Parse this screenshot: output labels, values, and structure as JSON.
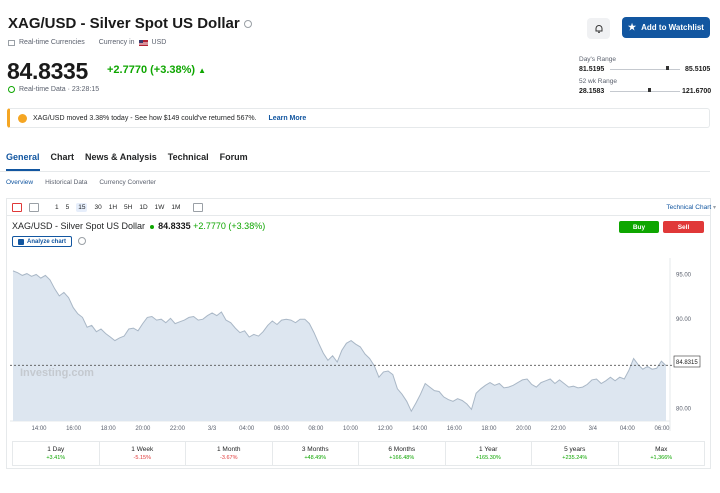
{
  "header": {
    "title": "XAG/USD - Silver Spot US Dollar",
    "realtime_currencies": "Real-time Currencies",
    "currency_in": "Currency in",
    "currency": "USD",
    "add_watchlist": "Add to Watchlist"
  },
  "quote": {
    "price": "84.8335",
    "change": "+2.7770",
    "change_pct": "(+3.38%)",
    "realtime_data": "Real-time Data · 23:28:15"
  },
  "ranges": {
    "day_label": "Day's Range",
    "day_low": "81.5195",
    "day_high": "85.5105",
    "week52_label": "52 wk Range",
    "week52_low": "28.1583",
    "week52_high": "121.6700"
  },
  "banner": {
    "text": "XAG/USD moved 3.38% today - See how $149 could've returned 567%.",
    "link": "Learn More"
  },
  "tabs": [
    "General",
    "Chart",
    "News & Analysis",
    "Technical",
    "Forum"
  ],
  "subtabs": [
    "Overview",
    "Historical Data",
    "Currency Converter"
  ],
  "toolbar": {
    "intervals": [
      "1",
      "5",
      "15",
      "30",
      "1H",
      "5H",
      "1D",
      "1W",
      "1M"
    ],
    "active_interval": "15",
    "technical_chart": "Technical Chart"
  },
  "chart_header": {
    "name": "XAG/USD - Silver Spot US Dollar",
    "price": "84.8335",
    "change": "+2.7770 (+3.38%)",
    "analyze": "Analyze chart",
    "buy": "Buy",
    "sell": "Sell",
    "watermark": "Investing.com",
    "last_label": "84.8315"
  },
  "chart_data": {
    "type": "area",
    "x_tick_labels": [
      "14:00",
      "16:00",
      "18:00",
      "20:00",
      "22:00",
      "3/3",
      "04:00",
      "06:00",
      "08:00",
      "10:00",
      "12:00",
      "14:00",
      "16:00",
      "18:00",
      "20:00",
      "22:00",
      "3/4",
      "04:00",
      "06:00"
    ],
    "y_tick_labels": [
      "95.00",
      "90.00",
      "85.00",
      "80.00"
    ],
    "ylim": [
      78.6,
      96.4
    ],
    "y_ticks": [
      95,
      90,
      85,
      80
    ],
    "last_value": 84.8315,
    "values": [
      95.4,
      95.2,
      94.9,
      95.1,
      94.8,
      95.0,
      94.6,
      94.9,
      94.4,
      93.4,
      92.6,
      93.0,
      92.4,
      91.3,
      90.6,
      90.2,
      89.1,
      89.3,
      88.6,
      88.9,
      88.4,
      88.0,
      87.6,
      87.9,
      88.1,
      88.9,
      89.0,
      88.7,
      89.5,
      90.2,
      90.3,
      89.9,
      90.0,
      89.6,
      90.1,
      89.5,
      89.7,
      89.9,
      90.2,
      90.3,
      89.9,
      90.0,
      90.4,
      90.7,
      90.4,
      90.8,
      89.9,
      89.6,
      89.0,
      88.5,
      88.7,
      88.0,
      88.3,
      88.1,
      88.6,
      89.3,
      89.8,
      89.4,
      89.9,
      90.0,
      89.9,
      89.6,
      90.0,
      90.0,
      89.5,
      88.5,
      87.3,
      86.2,
      85.4,
      85.9,
      85.2,
      86.5,
      87.3,
      87.6,
      87.2,
      86.9,
      86.1,
      85.6,
      84.8,
      83.5,
      84.1,
      84.2,
      83.8,
      82.2,
      81.6,
      80.8,
      79.7,
      80.6,
      81.6,
      82.8,
      82.4,
      82.0,
      81.9,
      81.3,
      81.0,
      80.8,
      81.1,
      80.9,
      80.5,
      79.9,
      81.7,
      82.2,
      82.6,
      82.9,
      82.6,
      82.8,
      82.3,
      82.4,
      82.6,
      82.9,
      83.2,
      83.3,
      82.7,
      82.4,
      82.9,
      83.1,
      83.3,
      82.8,
      83.2,
      82.8,
      82.4,
      82.5,
      82.3,
      82.4,
      82.7,
      83.2,
      83.3,
      82.8,
      83.1,
      83.5,
      83.1,
      83.5,
      83.3,
      84.3,
      85.6,
      84.9,
      84.4,
      84.7,
      84.4,
      84.5,
      85.3,
      84.8
    ]
  },
  "performance": [
    {
      "label": "1 Day",
      "value": "+3.41%",
      "dir": "pos"
    },
    {
      "label": "1 Week",
      "value": "-5.15%",
      "dir": "neg"
    },
    {
      "label": "1 Month",
      "value": "-3.67%",
      "dir": "neg"
    },
    {
      "label": "3 Months",
      "value": "+48.49%",
      "dir": "pos"
    },
    {
      "label": "6 Months",
      "value": "+166.48%",
      "dir": "pos"
    },
    {
      "label": "1 Year",
      "value": "+165.30%",
      "dir": "pos"
    },
    {
      "label": "5 years",
      "value": "+235.24%",
      "dir": "pos"
    },
    {
      "label": "Max",
      "value": "+1,366%",
      "dir": "pos"
    }
  ],
  "colors": {
    "accent": "#1256a0",
    "positive": "#0ea600",
    "negative": "#e03838",
    "area_fill": "#dde6f0",
    "area_line": "#a9b7c6"
  }
}
